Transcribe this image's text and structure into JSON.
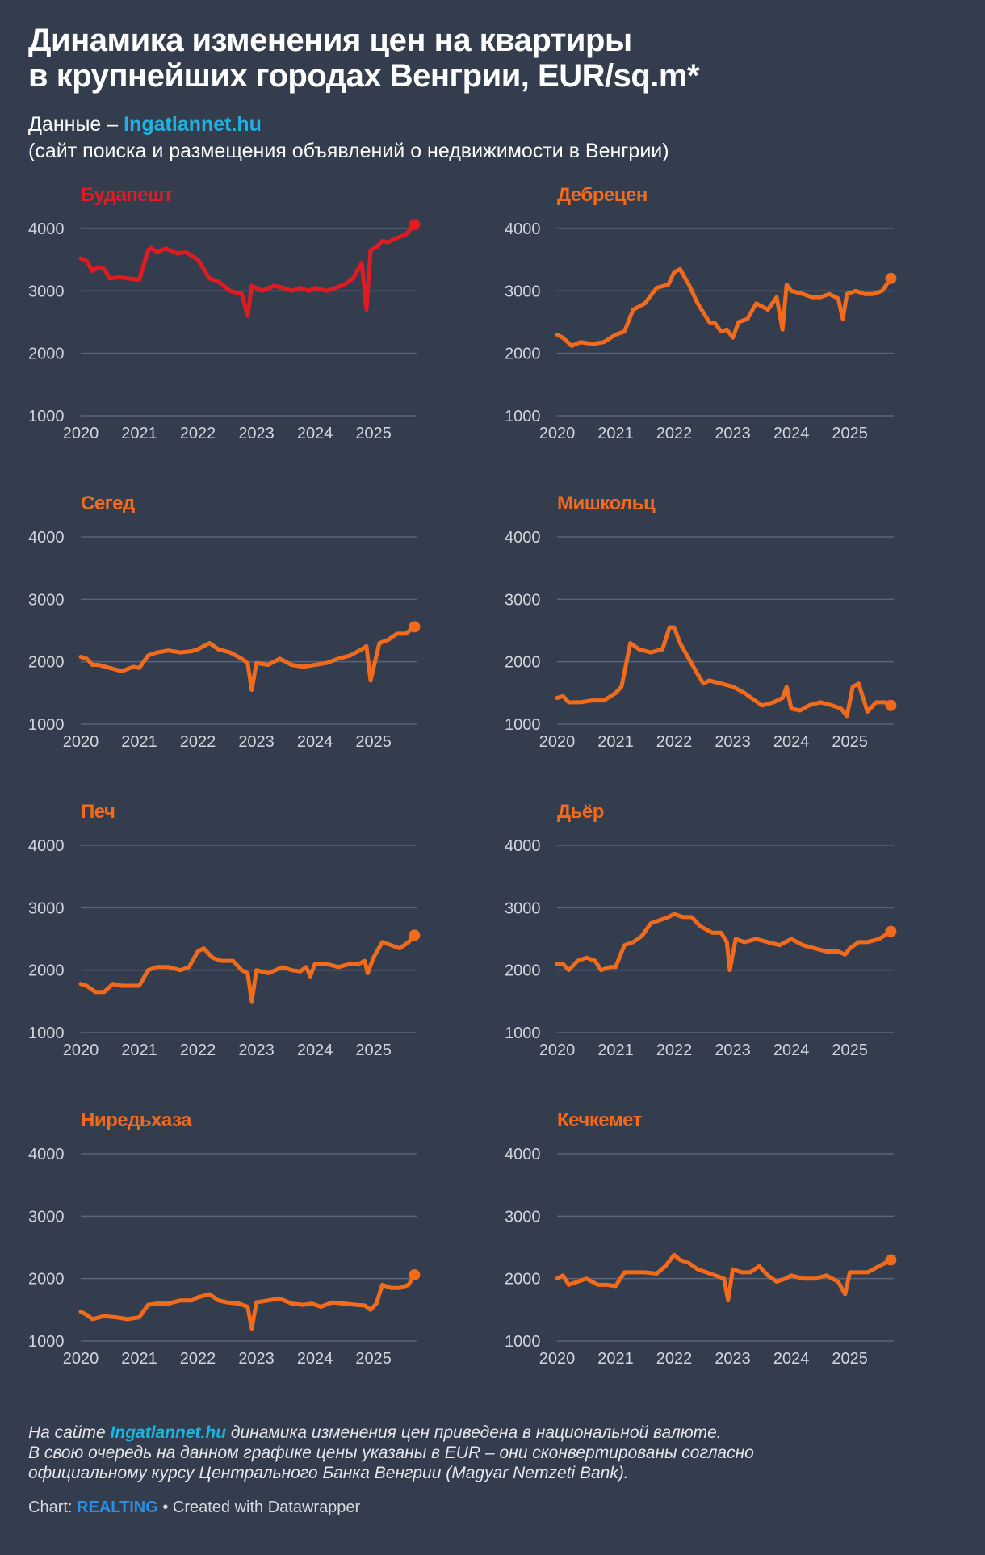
{
  "title_line1": "Динамика изменения цен на квартиры",
  "title_line2": "в крупнейших городах Венгрии, EUR/sq.m*",
  "subtitle_prefix": "Данные – ",
  "subtitle_source": "Ingatlannet.hu",
  "subtitle_desc": "(сайт поиска и размещения объявлений о недвижимости в Венгрии)",
  "notes": {
    "prefix": "На сайте ",
    "source": "Ingatlannet.hu",
    "line1_rest": " динамика изменения цен приведена в национальной валюте.",
    "line2": "В свою очередь на данном графике цены указаны в EUR – они сконвертированы согласно",
    "line3": "официальному курсу Центрального Банка Венгрии (Magyar Nemzeti Bank)."
  },
  "credit": {
    "prefix": "Chart: ",
    "brand": "REALTING",
    "suffix": " • Created with Datawrapper"
  },
  "colors": {
    "background": "#343d4d",
    "budapest": "#e01b22",
    "other": "#f26b1d",
    "grid": "#59657a",
    "tick": "#d2d6dc",
    "link": "#1fb2e0",
    "brand": "#2d8fe2"
  },
  "chart_data": [
    {
      "type": "line",
      "title": "Будапешт",
      "color": "#e01b22",
      "ylim": [
        1000,
        4000
      ],
      "yticks": [
        "1000",
        "2000",
        "3000",
        "4000"
      ],
      "xlim": [
        2020,
        2025.75
      ],
      "xticks": [
        "2020",
        "2021",
        "2022",
        "2023",
        "2024",
        "2025"
      ],
      "x": [
        2020,
        2020.1,
        2020.2,
        2020.3,
        2020.4,
        2020.5,
        2020.65,
        2020.8,
        2021,
        2021.15,
        2021.2,
        2021.3,
        2021.45,
        2021.65,
        2021.8,
        2022,
        2022.2,
        2022.35,
        2022.55,
        2022.75,
        2022.85,
        2022.92,
        2023,
        2023.1,
        2023.3,
        2023.45,
        2023.6,
        2023.75,
        2023.9,
        2024,
        2024.2,
        2024.35,
        2024.5,
        2024.65,
        2024.8,
        2024.88,
        2024.95,
        2025.05,
        2025.15,
        2025.25,
        2025.4,
        2025.55,
        2025.7
      ],
      "values": [
        3520,
        3480,
        3320,
        3380,
        3350,
        3200,
        3220,
        3200,
        3180,
        3650,
        3690,
        3620,
        3680,
        3600,
        3620,
        3500,
        3200,
        3150,
        3000,
        2950,
        2600,
        3080,
        3050,
        3000,
        3080,
        3050,
        3000,
        3050,
        3000,
        3050,
        3000,
        3050,
        3100,
        3200,
        3450,
        2700,
        3650,
        3700,
        3800,
        3780,
        3850,
        3900,
        4060
      ]
    },
    {
      "type": "line",
      "title": "Дебрецен",
      "color": "#f26b1d",
      "ylim": [
        1000,
        4000
      ],
      "yticks": [
        "1000",
        "2000",
        "3000",
        "4000"
      ],
      "xlim": [
        2020,
        2025.75
      ],
      "xticks": [
        "2020",
        "2021",
        "2022",
        "2023",
        "2024",
        "2025"
      ],
      "x": [
        2020,
        2020.1,
        2020.25,
        2020.4,
        2020.6,
        2020.8,
        2021,
        2021.15,
        2021.3,
        2021.5,
        2021.7,
        2021.9,
        2022,
        2022.1,
        2022.25,
        2022.4,
        2022.6,
        2022.7,
        2022.8,
        2022.9,
        2023,
        2023.1,
        2023.25,
        2023.4,
        2023.6,
        2023.75,
        2023.85,
        2023.92,
        2024,
        2024.2,
        2024.35,
        2024.5,
        2024.65,
        2024.8,
        2024.88,
        2024.95,
        2025.1,
        2025.25,
        2025.4,
        2025.55,
        2025.7
      ],
      "values": [
        2300,
        2250,
        2120,
        2180,
        2150,
        2180,
        2300,
        2350,
        2700,
        2800,
        3050,
        3100,
        3300,
        3350,
        3100,
        2800,
        2500,
        2480,
        2350,
        2380,
        2250,
        2500,
        2550,
        2800,
        2700,
        2900,
        2380,
        3100,
        3000,
        2950,
        2900,
        2900,
        2950,
        2880,
        2550,
        2950,
        3000,
        2950,
        2950,
        3000,
        3200
      ]
    },
    {
      "type": "line",
      "title": "Сегед",
      "color": "#f26b1d",
      "ylim": [
        1000,
        4000
      ],
      "yticks": [
        "1000",
        "2000",
        "3000",
        "4000"
      ],
      "xlim": [
        2020,
        2025.75
      ],
      "xticks": [
        "2020",
        "2021",
        "2022",
        "2023",
        "2024",
        "2025"
      ],
      "x": [
        2020,
        2020.1,
        2020.2,
        2020.3,
        2020.5,
        2020.7,
        2020.9,
        2021,
        2021.15,
        2021.3,
        2021.5,
        2021.7,
        2021.9,
        2022,
        2022.2,
        2022.35,
        2022.55,
        2022.75,
        2022.85,
        2022.92,
        2023,
        2023.2,
        2023.4,
        2023.6,
        2023.8,
        2024,
        2024.2,
        2024.4,
        2024.6,
        2024.8,
        2024.88,
        2024.95,
        2025.1,
        2025.25,
        2025.4,
        2025.55,
        2025.7
      ],
      "values": [
        2080,
        2050,
        1950,
        1950,
        1900,
        1850,
        1920,
        1900,
        2100,
        2150,
        2180,
        2150,
        2170,
        2200,
        2300,
        2200,
        2150,
        2050,
        1980,
        1550,
        1980,
        1950,
        2050,
        1950,
        1920,
        1950,
        1980,
        2050,
        2100,
        2200,
        2250,
        1700,
        2300,
        2350,
        2450,
        2450,
        2560
      ]
    },
    {
      "type": "line",
      "title": "Мишкольц",
      "color": "#f26b1d",
      "ylim": [
        1000,
        4000
      ],
      "yticks": [
        "1000",
        "2000",
        "3000",
        "4000"
      ],
      "xlim": [
        2020,
        2025.75
      ],
      "xticks": [
        "2020",
        "2021",
        "2022",
        "2023",
        "2024",
        "2025"
      ],
      "x": [
        2020,
        2020.1,
        2020.2,
        2020.4,
        2020.6,
        2020.8,
        2021,
        2021.1,
        2021.25,
        2021.4,
        2021.6,
        2021.8,
        2021.92,
        2022,
        2022.1,
        2022.25,
        2022.4,
        2022.5,
        2022.6,
        2022.8,
        2023,
        2023.2,
        2023.35,
        2023.5,
        2023.7,
        2023.85,
        2023.92,
        2024,
        2024.15,
        2024.3,
        2024.5,
        2024.7,
        2024.85,
        2024.95,
        2025.05,
        2025.15,
        2025.3,
        2025.45,
        2025.6,
        2025.7
      ],
      "values": [
        1420,
        1450,
        1350,
        1350,
        1380,
        1380,
        1500,
        1600,
        2300,
        2200,
        2150,
        2200,
        2550,
        2550,
        2300,
        2050,
        1800,
        1650,
        1700,
        1650,
        1600,
        1500,
        1400,
        1300,
        1350,
        1420,
        1600,
        1250,
        1220,
        1300,
        1350,
        1300,
        1250,
        1130,
        1600,
        1650,
        1200,
        1350,
        1350,
        1300
      ]
    },
    {
      "type": "line",
      "title": "Печ",
      "color": "#f26b1d",
      "ylim": [
        1000,
        4000
      ],
      "yticks": [
        "1000",
        "2000",
        "3000",
        "4000"
      ],
      "xlim": [
        2020,
        2025.75
      ],
      "xticks": [
        "2020",
        "2021",
        "2022",
        "2023",
        "2024",
        "2025"
      ],
      "x": [
        2020,
        2020.1,
        2020.25,
        2020.4,
        2020.55,
        2020.7,
        2020.9,
        2021,
        2021.15,
        2021.3,
        2021.5,
        2021.7,
        2021.85,
        2022,
        2022.1,
        2022.25,
        2022.4,
        2022.6,
        2022.75,
        2022.85,
        2022.92,
        2023,
        2023.2,
        2023.45,
        2023.6,
        2023.75,
        2023.85,
        2023.92,
        2024,
        2024.2,
        2024.4,
        2024.6,
        2024.75,
        2024.85,
        2024.9,
        2025,
        2025.15,
        2025.3,
        2025.45,
        2025.6,
        2025.7
      ],
      "values": [
        1780,
        1750,
        1650,
        1650,
        1780,
        1750,
        1750,
        1750,
        2000,
        2050,
        2050,
        2000,
        2050,
        2300,
        2350,
        2200,
        2150,
        2150,
        2000,
        1950,
        1500,
        2000,
        1950,
        2050,
        2000,
        1980,
        2050,
        1900,
        2100,
        2100,
        2050,
        2100,
        2100,
        2150,
        1950,
        2200,
        2450,
        2400,
        2350,
        2450,
        2560
      ]
    },
    {
      "type": "line",
      "title": "Дьёр",
      "color": "#f26b1d",
      "ylim": [
        1000,
        4000
      ],
      "yticks": [
        "1000",
        "2000",
        "3000",
        "4000"
      ],
      "xlim": [
        2020,
        2025.75
      ],
      "xticks": [
        "2020",
        "2021",
        "2022",
        "2023",
        "2024",
        "2025"
      ],
      "x": [
        2020,
        2020.1,
        2020.2,
        2020.35,
        2020.5,
        2020.65,
        2020.75,
        2020.9,
        2021,
        2021.15,
        2021.3,
        2021.45,
        2021.6,
        2021.75,
        2021.9,
        2022,
        2022.15,
        2022.3,
        2022.45,
        2022.65,
        2022.8,
        2022.9,
        2022.95,
        2023.05,
        2023.2,
        2023.4,
        2023.6,
        2023.8,
        2024,
        2024.2,
        2024.4,
        2024.6,
        2024.8,
        2024.92,
        2025,
        2025.15,
        2025.3,
        2025.5,
        2025.7
      ],
      "values": [
        2100,
        2100,
        2000,
        2150,
        2200,
        2150,
        2000,
        2050,
        2050,
        2400,
        2450,
        2550,
        2750,
        2800,
        2850,
        2900,
        2850,
        2850,
        2700,
        2600,
        2600,
        2450,
        2000,
        2500,
        2450,
        2500,
        2450,
        2400,
        2500,
        2400,
        2350,
        2300,
        2300,
        2250,
        2350,
        2450,
        2450,
        2500,
        2620
      ]
    },
    {
      "type": "line",
      "title": "Ниредьхаза",
      "color": "#f26b1d",
      "ylim": [
        1000,
        4000
      ],
      "yticks": [
        "1000",
        "2000",
        "3000",
        "4000"
      ],
      "xlim": [
        2020,
        2025.75
      ],
      "xticks": [
        "2020",
        "2021",
        "2022",
        "2023",
        "2024",
        "2025"
      ],
      "x": [
        2020,
        2020.1,
        2020.2,
        2020.4,
        2020.6,
        2020.8,
        2021,
        2021.15,
        2021.3,
        2021.5,
        2021.7,
        2021.9,
        2022,
        2022.2,
        2022.35,
        2022.5,
        2022.7,
        2022.85,
        2022.92,
        2023,
        2023.2,
        2023.4,
        2023.6,
        2023.8,
        2023.95,
        2024.1,
        2024.3,
        2024.5,
        2024.7,
        2024.85,
        2024.95,
        2025.05,
        2025.15,
        2025.3,
        2025.45,
        2025.6,
        2025.7
      ],
      "values": [
        1470,
        1420,
        1350,
        1400,
        1380,
        1350,
        1380,
        1580,
        1600,
        1600,
        1650,
        1650,
        1700,
        1750,
        1650,
        1620,
        1600,
        1550,
        1200,
        1620,
        1650,
        1680,
        1600,
        1580,
        1600,
        1550,
        1620,
        1600,
        1580,
        1570,
        1500,
        1600,
        1900,
        1850,
        1850,
        1900,
        2060
      ]
    },
    {
      "type": "line",
      "title": "Кечкемет",
      "color": "#f26b1d",
      "ylim": [
        1000,
        4000
      ],
      "yticks": [
        "1000",
        "2000",
        "3000",
        "4000"
      ],
      "xlim": [
        2020,
        2025.75
      ],
      "xticks": [
        "2020",
        "2021",
        "2022",
        "2023",
        "2024",
        "2025"
      ],
      "x": [
        2020,
        2020.1,
        2020.2,
        2020.35,
        2020.5,
        2020.7,
        2020.85,
        2021,
        2021.15,
        2021.3,
        2021.5,
        2021.7,
        2021.85,
        2022,
        2022.1,
        2022.25,
        2022.4,
        2022.55,
        2022.7,
        2022.85,
        2022.92,
        2023,
        2023.15,
        2023.3,
        2023.45,
        2023.6,
        2023.75,
        2023.9,
        2024,
        2024.2,
        2024.4,
        2024.6,
        2024.8,
        2024.92,
        2025,
        2025.15,
        2025.3,
        2025.5,
        2025.7
      ],
      "values": [
        2000,
        2050,
        1900,
        1950,
        2000,
        1900,
        1900,
        1880,
        2100,
        2100,
        2100,
        2080,
        2200,
        2380,
        2300,
        2250,
        2150,
        2100,
        2050,
        2000,
        1650,
        2150,
        2100,
        2100,
        2200,
        2050,
        1950,
        2000,
        2050,
        2000,
        2000,
        2050,
        1950,
        1750,
        2100,
        2100,
        2100,
        2200,
        2300
      ]
    }
  ]
}
